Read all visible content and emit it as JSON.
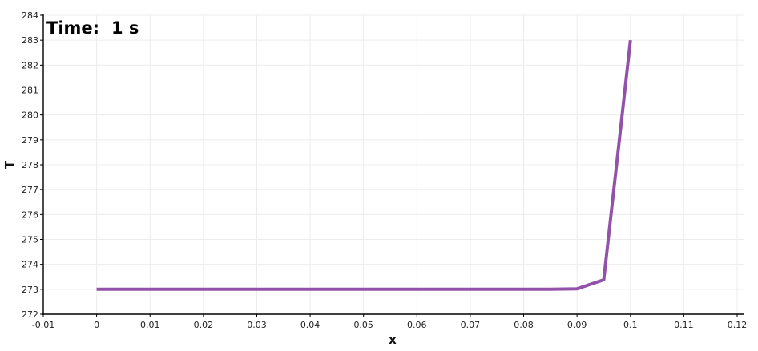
{
  "annotation": {
    "label": "Time:",
    "value": "1 s"
  },
  "chart_data": {
    "type": "line",
    "title": "",
    "xlabel": "x",
    "ylabel": "T",
    "xlim": [
      -0.01,
      0.12
    ],
    "ylim": [
      272,
      284
    ],
    "x_ticks": [
      -0.01,
      0,
      0.01,
      0.02,
      0.03,
      0.04,
      0.05,
      0.06,
      0.07,
      0.08,
      0.09,
      0.1,
      0.11,
      0.12
    ],
    "x_tick_labels": [
      "-0.01",
      "0",
      "0.01",
      "0.02",
      "0.03",
      "0.04",
      "0.05",
      "0.06",
      "0.07",
      "0.08",
      "0.09",
      "0.1",
      "0.11",
      "0.12"
    ],
    "y_ticks": [
      272,
      273,
      274,
      275,
      276,
      277,
      278,
      279,
      280,
      281,
      282,
      283,
      284
    ],
    "y_tick_labels": [
      "272",
      "273",
      "274",
      "275",
      "276",
      "277",
      "278",
      "279",
      "280",
      "281",
      "282",
      "283",
      "284"
    ],
    "grid": true,
    "legend": "none",
    "series": [
      {
        "color": "#9352a9",
        "x": [
          0,
          0.01,
          0.02,
          0.03,
          0.04,
          0.05,
          0.06,
          0.07,
          0.08,
          0.085,
          0.09,
          0.095,
          0.1
        ],
        "values": [
          273,
          273,
          273,
          273,
          273,
          273,
          273,
          273,
          273,
          273,
          273.02,
          273.38,
          283
        ]
      }
    ]
  }
}
